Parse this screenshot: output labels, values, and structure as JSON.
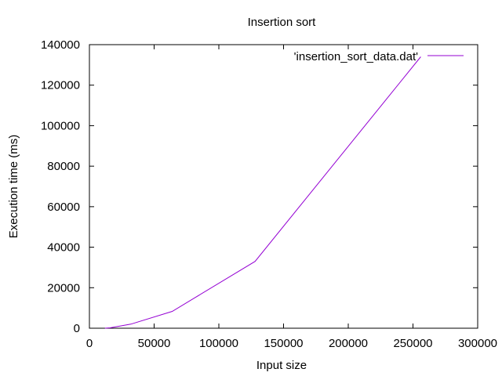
{
  "chart_data": {
    "type": "line",
    "title": "Insertion sort",
    "xlabel": "Input size",
    "ylabel": "Execution time (ms)",
    "xlim": [
      0,
      300000
    ],
    "ylim": [
      0,
      140000
    ],
    "xticks": [
      0,
      50000,
      100000,
      150000,
      200000,
      250000,
      300000
    ],
    "yticks": [
      0,
      20000,
      40000,
      60000,
      80000,
      100000,
      120000,
      140000
    ],
    "grid": false,
    "legend_position": "top-right",
    "series": [
      {
        "name": "'insertion_sort_data.dat'",
        "color": "#9400d3",
        "x": [
          12000,
          16000,
          32000,
          64000,
          128000,
          256000
        ],
        "y": [
          0,
          200,
          2000,
          8300,
          33000,
          134000
        ]
      }
    ]
  }
}
